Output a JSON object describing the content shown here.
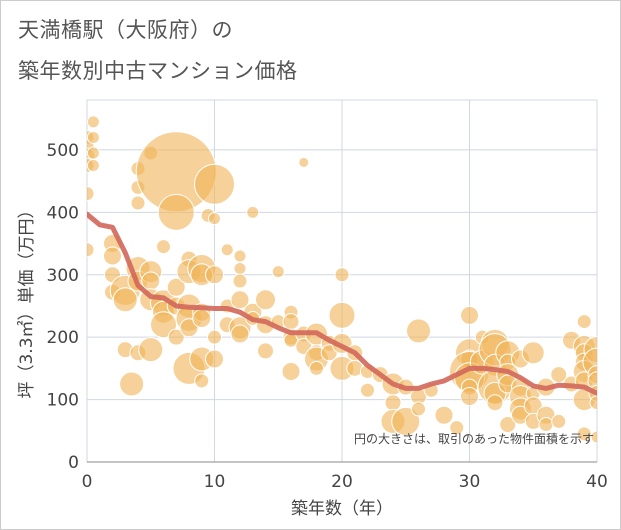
{
  "title_line1": "天満橋駅（大阪府）の",
  "title_line2": "築年数別中古マンション価格",
  "chart_data": {
    "type": "scatter",
    "title": "天満橋駅（大阪府）の築年数別中古マンション価格",
    "xlabel": "築年数（年）",
    "ylabel": "坪（3.3㎡）単価（万円）",
    "xlim": [
      0,
      40
    ],
    "ylim": [
      0,
      580
    ],
    "xticks": [
      0,
      10,
      20,
      30,
      40
    ],
    "yticks": [
      0,
      100,
      200,
      300,
      400,
      500
    ],
    "grid": true,
    "annotation": "円の大きさは、取引のあった物件面積を示す",
    "colors": {
      "bubble": "#f0b55a",
      "bubble_stroke": "#ffffff",
      "trend": "#d2675a",
      "grid": "#d0d8e0",
      "tick_label": "#444444"
    },
    "trend": {
      "x": [
        0,
        1,
        2,
        3,
        4,
        5,
        6,
        7,
        8,
        9,
        10,
        11,
        12,
        13,
        14,
        15,
        16,
        17,
        18,
        19,
        20,
        21,
        22,
        23,
        24,
        25,
        26,
        27,
        28,
        29,
        30,
        31,
        32,
        33,
        34,
        35,
        36,
        37,
        38,
        39,
        40
      ],
      "y": [
        397,
        380,
        376,
        335,
        283,
        265,
        263,
        250,
        248,
        247,
        246,
        246,
        240,
        228,
        225,
        215,
        207,
        207,
        207,
        195,
        185,
        175,
        155,
        140,
        125,
        118,
        118,
        125,
        130,
        140,
        150,
        150,
        148,
        145,
        135,
        122,
        118,
        123,
        122,
        120,
        110
      ]
    },
    "bubbles": [
      {
        "x": 0,
        "y": 520,
        "s": 7
      },
      {
        "x": 0,
        "y": 505,
        "s": 7
      },
      {
        "x": 0,
        "y": 490,
        "s": 8
      },
      {
        "x": 0,
        "y": 475,
        "s": 7
      },
      {
        "x": 0,
        "y": 430,
        "s": 7
      },
      {
        "x": 0,
        "y": 340,
        "s": 7
      },
      {
        "x": 0.5,
        "y": 545,
        "s": 6
      },
      {
        "x": 0.5,
        "y": 520,
        "s": 6
      },
      {
        "x": 0.5,
        "y": 495,
        "s": 6
      },
      {
        "x": 0.5,
        "y": 475,
        "s": 6
      },
      {
        "x": 2,
        "y": 350,
        "s": 9
      },
      {
        "x": 2,
        "y": 330,
        "s": 9
      },
      {
        "x": 2,
        "y": 300,
        "s": 8
      },
      {
        "x": 2,
        "y": 272,
        "s": 8
      },
      {
        "x": 3,
        "y": 275,
        "s": 15
      },
      {
        "x": 3,
        "y": 260,
        "s": 12
      },
      {
        "x": 3,
        "y": 180,
        "s": 8
      },
      {
        "x": 3.5,
        "y": 125,
        "s": 12
      },
      {
        "x": 4,
        "y": 470,
        "s": 7
      },
      {
        "x": 4,
        "y": 440,
        "s": 7
      },
      {
        "x": 4,
        "y": 415,
        "s": 7
      },
      {
        "x": 4,
        "y": 310,
        "s": 12
      },
      {
        "x": 4,
        "y": 290,
        "s": 10
      },
      {
        "x": 4,
        "y": 175,
        "s": 8
      },
      {
        "x": 5,
        "y": 495,
        "s": 7
      },
      {
        "x": 5,
        "y": 305,
        "s": 11
      },
      {
        "x": 5,
        "y": 290,
        "s": 9
      },
      {
        "x": 5,
        "y": 260,
        "s": 11
      },
      {
        "x": 5,
        "y": 180,
        "s": 12
      },
      {
        "x": 6,
        "y": 345,
        "s": 7
      },
      {
        "x": 6,
        "y": 255,
        "s": 13
      },
      {
        "x": 6,
        "y": 240,
        "s": 11
      },
      {
        "x": 6,
        "y": 220,
        "s": 13
      },
      {
        "x": 7,
        "y": 465,
        "s": 40
      },
      {
        "x": 7,
        "y": 400,
        "s": 18
      },
      {
        "x": 7,
        "y": 280,
        "s": 9
      },
      {
        "x": 7,
        "y": 250,
        "s": 9
      },
      {
        "x": 7,
        "y": 200,
        "s": 8
      },
      {
        "x": 8,
        "y": 325,
        "s": 8
      },
      {
        "x": 8,
        "y": 305,
        "s": 12
      },
      {
        "x": 8,
        "y": 250,
        "s": 12
      },
      {
        "x": 8,
        "y": 230,
        "s": 13
      },
      {
        "x": 8,
        "y": 215,
        "s": 9
      },
      {
        "x": 8,
        "y": 150,
        "s": 16
      },
      {
        "x": 9,
        "y": 310,
        "s": 14
      },
      {
        "x": 9,
        "y": 300,
        "s": 11
      },
      {
        "x": 9,
        "y": 240,
        "s": 9
      },
      {
        "x": 9,
        "y": 230,
        "s": 9
      },
      {
        "x": 9,
        "y": 165,
        "s": 12
      },
      {
        "x": 9,
        "y": 130,
        "s": 7
      },
      {
        "x": 9.5,
        "y": 395,
        "s": 7
      },
      {
        "x": 10,
        "y": 445,
        "s": 20
      },
      {
        "x": 10,
        "y": 390,
        "s": 6
      },
      {
        "x": 10,
        "y": 300,
        "s": 9
      },
      {
        "x": 10,
        "y": 200,
        "s": 7
      },
      {
        "x": 10,
        "y": 165,
        "s": 9
      },
      {
        "x": 11,
        "y": 340,
        "s": 6
      },
      {
        "x": 11,
        "y": 250,
        "s": 7
      },
      {
        "x": 11,
        "y": 220,
        "s": 8
      },
      {
        "x": 12,
        "y": 330,
        "s": 6
      },
      {
        "x": 12,
        "y": 310,
        "s": 6
      },
      {
        "x": 12,
        "y": 290,
        "s": 7
      },
      {
        "x": 12,
        "y": 260,
        "s": 9
      },
      {
        "x": 12,
        "y": 215,
        "s": 11
      },
      {
        "x": 12,
        "y": 205,
        "s": 9
      },
      {
        "x": 13,
        "y": 400,
        "s": 6
      },
      {
        "x": 13,
        "y": 240,
        "s": 9
      },
      {
        "x": 13,
        "y": 230,
        "s": 7
      },
      {
        "x": 14,
        "y": 260,
        "s": 10
      },
      {
        "x": 14,
        "y": 220,
        "s": 9
      },
      {
        "x": 14,
        "y": 178,
        "s": 8
      },
      {
        "x": 15,
        "y": 305,
        "s": 6
      },
      {
        "x": 15,
        "y": 225,
        "s": 7
      },
      {
        "x": 16,
        "y": 240,
        "s": 7
      },
      {
        "x": 16,
        "y": 225,
        "s": 8
      },
      {
        "x": 16,
        "y": 200,
        "s": 8
      },
      {
        "x": 16,
        "y": 195,
        "s": 7
      },
      {
        "x": 16,
        "y": 145,
        "s": 9
      },
      {
        "x": 17,
        "y": 480,
        "s": 5
      },
      {
        "x": 17,
        "y": 205,
        "s": 8
      },
      {
        "x": 17,
        "y": 185,
        "s": 8
      },
      {
        "x": 18,
        "y": 205,
        "s": 11
      },
      {
        "x": 18,
        "y": 175,
        "s": 8
      },
      {
        "x": 18,
        "y": 165,
        "s": 12
      },
      {
        "x": 18,
        "y": 150,
        "s": 7
      },
      {
        "x": 19,
        "y": 190,
        "s": 8
      },
      {
        "x": 19,
        "y": 175,
        "s": 8
      },
      {
        "x": 20,
        "y": 300,
        "s": 7
      },
      {
        "x": 20,
        "y": 235,
        "s": 13
      },
      {
        "x": 20,
        "y": 190,
        "s": 10
      },
      {
        "x": 20,
        "y": 150,
        "s": 12
      },
      {
        "x": 21,
        "y": 175,
        "s": 8
      },
      {
        "x": 21,
        "y": 150,
        "s": 8
      },
      {
        "x": 22,
        "y": 145,
        "s": 7
      },
      {
        "x": 22,
        "y": 115,
        "s": 7
      },
      {
        "x": 23,
        "y": 140,
        "s": 8
      },
      {
        "x": 24,
        "y": 125,
        "s": 11
      },
      {
        "x": 24,
        "y": 95,
        "s": 8
      },
      {
        "x": 24,
        "y": 65,
        "s": 12
      },
      {
        "x": 25,
        "y": 120,
        "s": 8
      },
      {
        "x": 25,
        "y": 65,
        "s": 14
      },
      {
        "x": 26,
        "y": 210,
        "s": 12
      },
      {
        "x": 26,
        "y": 105,
        "s": 8
      },
      {
        "x": 26,
        "y": 85,
        "s": 7
      },
      {
        "x": 27,
        "y": 115,
        "s": 7
      },
      {
        "x": 28,
        "y": 75,
        "s": 9
      },
      {
        "x": 29,
        "y": 55,
        "s": 7
      },
      {
        "x": 30,
        "y": 235,
        "s": 9
      },
      {
        "x": 30,
        "y": 175,
        "s": 14
      },
      {
        "x": 30,
        "y": 165,
        "s": 9
      },
      {
        "x": 30,
        "y": 145,
        "s": 20
      },
      {
        "x": 30,
        "y": 135,
        "s": 15
      },
      {
        "x": 30,
        "y": 120,
        "s": 8
      },
      {
        "x": 30,
        "y": 105,
        "s": 9
      },
      {
        "x": 31,
        "y": 200,
        "s": 7
      },
      {
        "x": 31,
        "y": 160,
        "s": 12
      },
      {
        "x": 32,
        "y": 190,
        "s": 14
      },
      {
        "x": 32,
        "y": 180,
        "s": 16
      },
      {
        "x": 32,
        "y": 155,
        "s": 11
      },
      {
        "x": 32,
        "y": 120,
        "s": 17
      },
      {
        "x": 32,
        "y": 110,
        "s": 11
      },
      {
        "x": 32,
        "y": 95,
        "s": 8
      },
      {
        "x": 33,
        "y": 175,
        "s": 12
      },
      {
        "x": 33,
        "y": 160,
        "s": 8
      },
      {
        "x": 33,
        "y": 140,
        "s": 11
      },
      {
        "x": 33,
        "y": 125,
        "s": 9
      },
      {
        "x": 33,
        "y": 60,
        "s": 8
      },
      {
        "x": 34,
        "y": 165,
        "s": 9
      },
      {
        "x": 34,
        "y": 120,
        "s": 9
      },
      {
        "x": 34,
        "y": 105,
        "s": 11
      },
      {
        "x": 34,
        "y": 85,
        "s": 11
      },
      {
        "x": 34,
        "y": 75,
        "s": 9
      },
      {
        "x": 35,
        "y": 175,
        "s": 11
      },
      {
        "x": 35,
        "y": 110,
        "s": 7
      },
      {
        "x": 35,
        "y": 90,
        "s": 9
      },
      {
        "x": 35,
        "y": 65,
        "s": 8
      },
      {
        "x": 36,
        "y": 120,
        "s": 9
      },
      {
        "x": 36,
        "y": 75,
        "s": 9
      },
      {
        "x": 36,
        "y": 60,
        "s": 7
      },
      {
        "x": 37,
        "y": 140,
        "s": 8
      },
      {
        "x": 37,
        "y": 65,
        "s": 7
      },
      {
        "x": 38,
        "y": 195,
        "s": 9
      },
      {
        "x": 38,
        "y": 125,
        "s": 8
      },
      {
        "x": 39,
        "y": 225,
        "s": 7
      },
      {
        "x": 39,
        "y": 185,
        "s": 11
      },
      {
        "x": 39,
        "y": 175,
        "s": 9
      },
      {
        "x": 39,
        "y": 160,
        "s": 9
      },
      {
        "x": 39,
        "y": 145,
        "s": 11
      },
      {
        "x": 39,
        "y": 130,
        "s": 9
      },
      {
        "x": 39,
        "y": 100,
        "s": 11
      },
      {
        "x": 39,
        "y": 45,
        "s": 7
      },
      {
        "x": 40,
        "y": 180,
        "s": 13
      },
      {
        "x": 40,
        "y": 160,
        "s": 14
      },
      {
        "x": 40,
        "y": 140,
        "s": 9
      },
      {
        "x": 40,
        "y": 130,
        "s": 9
      },
      {
        "x": 40,
        "y": 110,
        "s": 8
      },
      {
        "x": 40,
        "y": 95,
        "s": 7
      },
      {
        "x": 40,
        "y": 40,
        "s": 6
      }
    ]
  }
}
